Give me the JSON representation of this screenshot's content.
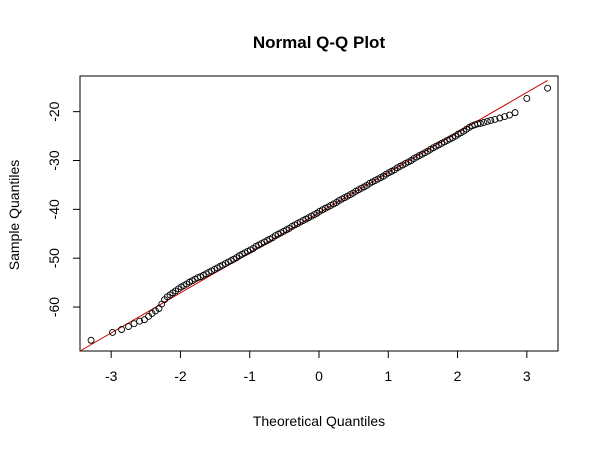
{
  "chart_data": {
    "type": "scatter",
    "title": "Normal Q-Q Plot",
    "xlabel": "Theoretical Quantiles",
    "ylabel": "Sample Quantiles",
    "xlim": [
      -3.45,
      3.45
    ],
    "ylim": [
      -69,
      -12.7
    ],
    "x_ticks": [
      -3,
      -2,
      -1,
      0,
      1,
      2,
      3
    ],
    "y_ticks": [
      -60,
      -50,
      -40,
      -30,
      -20
    ],
    "grid": false,
    "legend": "none",
    "point_color": "#000000",
    "reference_line": {
      "color": "#cc0000",
      "points": [
        [
          -3.45,
          -69.0
        ],
        [
          3.3,
          -13.6
        ]
      ]
    },
    "points": [
      [
        -3.29,
        -66.8
      ],
      [
        -2.98,
        -65.2
      ],
      [
        -2.85,
        -64.6
      ],
      [
        -2.75,
        -64.0
      ],
      [
        -2.67,
        -63.4
      ],
      [
        -2.59,
        -62.9
      ],
      [
        -2.52,
        -62.6
      ],
      [
        -2.46,
        -61.9
      ],
      [
        -2.41,
        -61.3
      ],
      [
        -2.36,
        -60.8
      ],
      [
        -2.31,
        -60.3
      ],
      [
        -2.27,
        -59.4
      ],
      [
        -2.23,
        -58.5
      ],
      [
        -2.19,
        -57.9
      ],
      [
        -2.15,
        -57.5
      ],
      [
        -2.11,
        -57.1
      ],
      [
        -2.07,
        -56.7
      ],
      [
        -2.03,
        -56.3
      ],
      [
        -1.99,
        -55.9
      ],
      [
        -1.95,
        -55.6
      ],
      [
        -1.91,
        -55.3
      ],
      [
        -1.87,
        -54.9
      ],
      [
        -1.83,
        -54.6
      ],
      [
        -1.79,
        -54.3
      ],
      [
        -1.75,
        -54.0
      ],
      [
        -1.71,
        -53.8
      ],
      [
        -1.67,
        -53.5
      ],
      [
        -1.63,
        -53.2
      ],
      [
        -1.59,
        -52.9
      ],
      [
        -1.55,
        -52.6
      ],
      [
        -1.51,
        -52.3
      ],
      [
        -1.47,
        -52.0
      ],
      [
        -1.43,
        -51.7
      ],
      [
        -1.39,
        -51.4
      ],
      [
        -1.35,
        -51.1
      ],
      [
        -1.31,
        -50.8
      ],
      [
        -1.27,
        -50.5
      ],
      [
        -1.23,
        -50.2
      ],
      [
        -1.19,
        -49.9
      ],
      [
        -1.15,
        -49.5
      ],
      [
        -1.11,
        -49.2
      ],
      [
        -1.07,
        -48.9
      ],
      [
        -1.03,
        -48.6
      ],
      [
        -0.99,
        -48.3
      ],
      [
        -0.95,
        -48.0
      ],
      [
        -0.91,
        -47.6
      ],
      [
        -0.87,
        -47.3
      ],
      [
        -0.83,
        -47.0
      ],
      [
        -0.79,
        -46.7
      ],
      [
        -0.75,
        -46.4
      ],
      [
        -0.71,
        -46.1
      ],
      [
        -0.67,
        -45.8
      ],
      [
        -0.63,
        -45.4
      ],
      [
        -0.59,
        -45.1
      ],
      [
        -0.55,
        -44.8
      ],
      [
        -0.51,
        -44.5
      ],
      [
        -0.47,
        -44.2
      ],
      [
        -0.43,
        -43.9
      ],
      [
        -0.39,
        -43.5
      ],
      [
        -0.35,
        -43.2
      ],
      [
        -0.31,
        -42.9
      ],
      [
        -0.27,
        -42.6
      ],
      [
        -0.23,
        -42.3
      ],
      [
        -0.19,
        -42.0
      ],
      [
        -0.15,
        -41.7
      ],
      [
        -0.11,
        -41.4
      ],
      [
        -0.07,
        -41.1
      ],
      [
        -0.03,
        -40.8
      ],
      [
        0.01,
        -40.4
      ],
      [
        0.05,
        -40.1
      ],
      [
        0.09,
        -39.8
      ],
      [
        0.13,
        -39.5
      ],
      [
        0.17,
        -39.2
      ],
      [
        0.21,
        -38.9
      ],
      [
        0.25,
        -38.6
      ],
      [
        0.29,
        -38.2
      ],
      [
        0.33,
        -37.9
      ],
      [
        0.37,
        -37.6
      ],
      [
        0.41,
        -37.3
      ],
      [
        0.45,
        -37.0
      ],
      [
        0.49,
        -36.7
      ],
      [
        0.53,
        -36.3
      ],
      [
        0.57,
        -36.0
      ],
      [
        0.61,
        -35.7
      ],
      [
        0.65,
        -35.4
      ],
      [
        0.69,
        -35.1
      ],
      [
        0.73,
        -34.7
      ],
      [
        0.77,
        -34.4
      ],
      [
        0.81,
        -34.1
      ],
      [
        0.85,
        -33.8
      ],
      [
        0.89,
        -33.5
      ],
      [
        0.93,
        -33.2
      ],
      [
        0.97,
        -32.8
      ],
      [
        1.01,
        -32.5
      ],
      [
        1.05,
        -32.2
      ],
      [
        1.09,
        -31.9
      ],
      [
        1.13,
        -31.5
      ],
      [
        1.17,
        -31.2
      ],
      [
        1.21,
        -30.9
      ],
      [
        1.25,
        -30.6
      ],
      [
        1.29,
        -30.3
      ],
      [
        1.33,
        -30.0
      ],
      [
        1.37,
        -29.6
      ],
      [
        1.41,
        -29.3
      ],
      [
        1.45,
        -29.0
      ],
      [
        1.49,
        -28.7
      ],
      [
        1.53,
        -28.4
      ],
      [
        1.57,
        -28.1
      ],
      [
        1.61,
        -27.7
      ],
      [
        1.65,
        -27.4
      ],
      [
        1.69,
        -27.1
      ],
      [
        1.73,
        -26.8
      ],
      [
        1.77,
        -26.5
      ],
      [
        1.81,
        -26.2
      ],
      [
        1.85,
        -25.9
      ],
      [
        1.89,
        -25.6
      ],
      [
        1.93,
        -25.3
      ],
      [
        1.97,
        -25.0
      ],
      [
        2.01,
        -24.6
      ],
      [
        2.05,
        -24.3
      ],
      [
        2.09,
        -24.0
      ],
      [
        2.13,
        -23.6
      ],
      [
        2.17,
        -23.2
      ],
      [
        2.21,
        -22.9
      ],
      [
        2.25,
        -22.7
      ],
      [
        2.29,
        -22.5
      ],
      [
        2.33,
        -22.4
      ],
      [
        2.38,
        -22.2
      ],
      [
        2.43,
        -22.0
      ],
      [
        2.48,
        -21.8
      ],
      [
        2.54,
        -21.6
      ],
      [
        2.61,
        -21.3
      ],
      [
        2.68,
        -21.0
      ],
      [
        2.75,
        -20.7
      ],
      [
        2.83,
        -20.2
      ],
      [
        3.0,
        -17.3
      ],
      [
        3.3,
        -15.2
      ]
    ]
  }
}
